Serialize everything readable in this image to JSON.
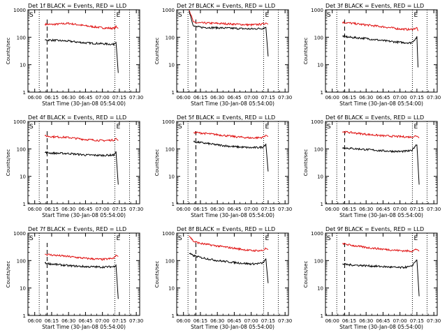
{
  "figure": {
    "x_axis_title": "Start Time (30-Jan-08 05:54:00)",
    "y_axis_title": "Counts/sec",
    "x_ticks": [
      "06:00",
      "06:15",
      "06:30",
      "06:45",
      "07:00",
      "07:15",
      "07:30"
    ],
    "y_ticks": [
      "1",
      "10",
      "100",
      "1000"
    ],
    "marker_s": "S",
    "marker_e": "E",
    "colors": {
      "events": "#000000",
      "lld": "#e01010"
    }
  },
  "chart_data": [
    {
      "type": "line",
      "title": "Det 1f BLACK = Events, RED = LLD",
      "xlabel": "Start Time (30-Jan-08 05:54:00)",
      "ylabel": "Counts/sec",
      "xlim": [
        "05:54",
        "07:33"
      ],
      "ylim": [
        1,
        1000
      ],
      "yscale": "log",
      "x": [
        "06:09",
        "06:15",
        "06:30",
        "06:45",
        "07:00",
        "07:10",
        "07:12",
        "07:14"
      ],
      "series": [
        {
          "name": "Events",
          "values": [
            80,
            78,
            72,
            62,
            58,
            55,
            70,
            5
          ]
        },
        {
          "name": "LLD",
          "values": [
            300,
            290,
            320,
            260,
            220,
            210,
            240,
            210
          ]
        }
      ],
      "dotted_lines": [
        "06:04",
        "07:11",
        "07:24"
      ],
      "dashed_lines": [
        "06:11"
      ]
    },
    {
      "type": "line",
      "title": "Det 2f BLACK = Events, RED = LLD",
      "xlabel": "Start Time (30-Jan-08 05:54:00)",
      "ylabel": "Counts/sec",
      "xlim": [
        "05:54",
        "07:33"
      ],
      "ylim": [
        1,
        1000
      ],
      "yscale": "log",
      "x": [
        "06:05",
        "06:09",
        "06:15",
        "06:30",
        "06:45",
        "07:00",
        "07:10",
        "07:13",
        "07:15"
      ],
      "series": [
        {
          "name": "Events",
          "values": [
            900,
            250,
            230,
            220,
            210,
            200,
            210,
            230,
            20
          ]
        },
        {
          "name": "LLD",
          "values": [
            1000,
            340,
            330,
            320,
            300,
            280,
            300,
            330,
            300
          ]
        }
      ],
      "dotted_lines": [
        "06:04",
        "07:11",
        "07:24"
      ],
      "dashed_lines": [
        "06:11"
      ]
    },
    {
      "type": "line",
      "title": "Det 3f BLACK = Events, RED = LLD",
      "xlabel": "Start Time (30-Jan-08 05:54:00)",
      "ylabel": "Counts/sec",
      "xlim": [
        "05:54",
        "07:33"
      ],
      "ylim": [
        1,
        1000
      ],
      "yscale": "log",
      "x": [
        "06:09",
        "06:15",
        "06:30",
        "06:45",
        "07:00",
        "07:10",
        "07:15",
        "07:16"
      ],
      "series": [
        {
          "name": "Events",
          "values": [
            110,
            100,
            90,
            75,
            65,
            62,
            100,
            8
          ]
        },
        {
          "name": "LLD",
          "values": [
            350,
            330,
            280,
            240,
            200,
            190,
            220,
            170
          ]
        }
      ],
      "dotted_lines": [
        "06:04",
        "07:11",
        "07:24"
      ],
      "dashed_lines": [
        "06:11"
      ]
    },
    {
      "type": "line",
      "title": "Det 4f BLACK = Events, RED = LLD",
      "xlabel": "Start Time (30-Jan-08 05:54:00)",
      "ylabel": "Counts/sec",
      "xlim": [
        "05:54",
        "07:33"
      ],
      "ylim": [
        1,
        1000
      ],
      "yscale": "log",
      "x": [
        "06:09",
        "06:15",
        "06:30",
        "06:45",
        "07:00",
        "07:10",
        "07:12",
        "07:14"
      ],
      "series": [
        {
          "name": "Events",
          "values": [
            75,
            70,
            68,
            60,
            58,
            60,
            75,
            5
          ]
        },
        {
          "name": "LLD",
          "values": [
            300,
            280,
            260,
            220,
            200,
            210,
            240,
            200
          ]
        }
      ],
      "dotted_lines": [
        "06:04",
        "07:11",
        "07:24"
      ],
      "dashed_lines": [
        "06:11"
      ]
    },
    {
      "type": "line",
      "title": "Det 5f BLACK = Events, RED = LLD",
      "xlabel": "Start Time (30-Jan-08 05:54:00)",
      "ylabel": "Counts/sec",
      "xlim": [
        "05:54",
        "07:33"
      ],
      "ylim": [
        1,
        1000
      ],
      "yscale": "log",
      "x": [
        "06:09",
        "06:15",
        "06:30",
        "06:45",
        "07:00",
        "07:10",
        "07:13",
        "07:15"
      ],
      "series": [
        {
          "name": "Events",
          "values": [
            180,
            170,
            140,
            120,
            110,
            115,
            150,
            15
          ]
        },
        {
          "name": "LLD",
          "values": [
            400,
            380,
            330,
            280,
            250,
            260,
            320,
            280
          ]
        }
      ],
      "dotted_lines": [
        "06:04",
        "07:11",
        "07:24"
      ],
      "dashed_lines": [
        "06:11"
      ]
    },
    {
      "type": "line",
      "title": "Det 6f BLACK = Events, RED = LLD",
      "xlabel": "Start Time (30-Jan-08 05:54:00)",
      "ylabel": "Counts/sec",
      "xlim": [
        "05:54",
        "07:33"
      ],
      "ylim": [
        1,
        1000
      ],
      "yscale": "log",
      "x": [
        "06:09",
        "06:15",
        "06:30",
        "06:45",
        "07:00",
        "07:10",
        "07:15",
        "07:17"
      ],
      "series": [
        {
          "name": "Events",
          "values": [
            110,
            105,
            95,
            85,
            80,
            85,
            150,
            5
          ]
        },
        {
          "name": "LLD",
          "values": [
            420,
            400,
            340,
            300,
            280,
            270,
            300,
            250
          ]
        }
      ],
      "dotted_lines": [
        "06:04",
        "07:11",
        "07:24"
      ],
      "dashed_lines": [
        "06:11"
      ]
    },
    {
      "type": "line",
      "title": "Det 7f BLACK = Events, RED = LLD",
      "xlabel": "Start Time (30-Jan-08 05:54:00)",
      "ylabel": "Counts/sec",
      "xlim": [
        "05:54",
        "07:33"
      ],
      "ylim": [
        1,
        1000
      ],
      "yscale": "log",
      "x": [
        "06:09",
        "06:15",
        "06:30",
        "06:45",
        "07:00",
        "07:10",
        "07:12",
        "07:14"
      ],
      "series": [
        {
          "name": "Events",
          "values": [
            80,
            75,
            65,
            60,
            58,
            60,
            70,
            4
          ]
        },
        {
          "name": "LLD",
          "values": [
            170,
            160,
            140,
            120,
            110,
            120,
            160,
            140
          ]
        }
      ],
      "dotted_lines": [
        "06:04",
        "07:11",
        "07:24"
      ],
      "dashed_lines": [
        "06:11"
      ]
    },
    {
      "type": "line",
      "title": "Det 8f BLACK = Events, RED = LLD",
      "xlabel": "Start Time (30-Jan-08 05:54:00)",
      "ylabel": "Counts/sec",
      "xlim": [
        "05:54",
        "07:33"
      ],
      "ylim": [
        1,
        1000
      ],
      "yscale": "log",
      "x": [
        "06:05",
        "06:09",
        "06:15",
        "06:30",
        "06:45",
        "07:00",
        "07:10",
        "07:13",
        "07:15"
      ],
      "series": [
        {
          "name": "Events",
          "values": [
            180,
            150,
            130,
            100,
            85,
            75,
            80,
            110,
            15
          ]
        },
        {
          "name": "LLD",
          "values": [
            800,
            500,
            420,
            340,
            280,
            230,
            230,
            280,
            250
          ]
        }
      ],
      "dotted_lines": [
        "06:04",
        "07:11",
        "07:24"
      ],
      "dashed_lines": [
        "06:11"
      ]
    },
    {
      "type": "line",
      "title": "Det 9f BLACK = Events, RED = LLD",
      "xlabel": "Start Time (30-Jan-08 05:54:00)",
      "ylabel": "Counts/sec",
      "xlim": [
        "05:54",
        "07:33"
      ],
      "ylim": [
        1,
        1000
      ],
      "yscale": "log",
      "x": [
        "06:09",
        "06:15",
        "06:30",
        "06:45",
        "07:00",
        "07:10",
        "07:15",
        "07:17"
      ],
      "series": [
        {
          "name": "Events",
          "values": [
            75,
            70,
            65,
            60,
            55,
            60,
            110,
            5
          ]
        },
        {
          "name": "LLD",
          "values": [
            420,
            370,
            300,
            260,
            230,
            220,
            260,
            220
          ]
        }
      ],
      "dotted_lines": [
        "06:04",
        "07:11",
        "07:24"
      ],
      "dashed_lines": [
        "06:11"
      ]
    }
  ]
}
